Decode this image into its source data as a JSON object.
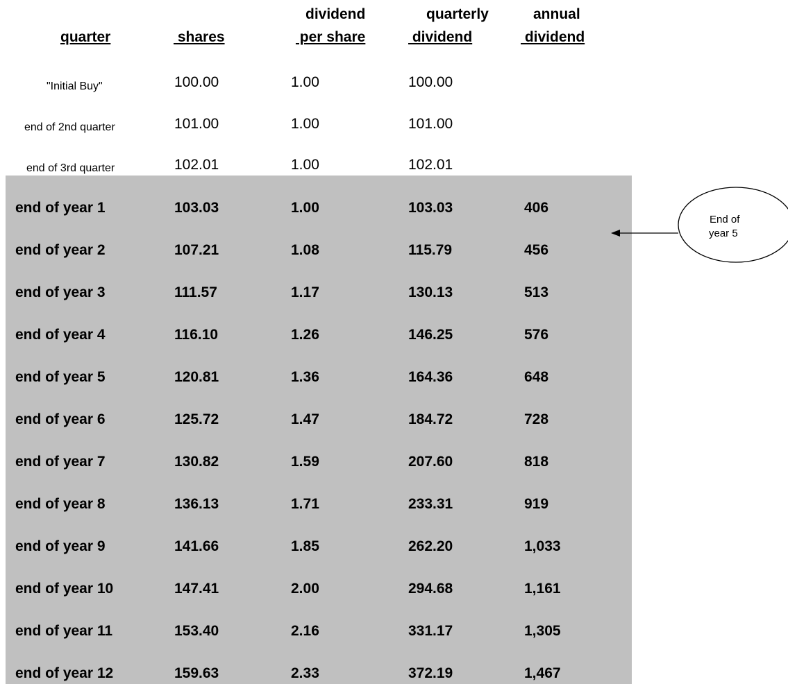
{
  "headers": {
    "quarter": "quarter",
    "shares": " shares",
    "dps_top": "dividend",
    "dps_bottom": " per share",
    "qdiv_top": "quarterly",
    "qdiv_bottom": " dividend",
    "adiv_top": "annual",
    "adiv_bottom": " dividend"
  },
  "quarter_rows": [
    {
      "label": "\"Initial Buy\"",
      "shares": "100.00",
      "dps": "1.00",
      "qdiv": "100.00"
    },
    {
      "label": "end of 2nd quarter",
      "shares": "101.00",
      "dps": "1.00",
      "qdiv": "101.00"
    },
    {
      "label": "end of 3rd quarter",
      "shares": "102.01",
      "dps": "1.00",
      "qdiv": "102.01"
    }
  ],
  "year_rows": [
    {
      "label": "end of year 1",
      "shares": "103.03",
      "dps": "1.00",
      "qdiv": "103.03",
      "adiv": "406"
    },
    {
      "label": "end of year 2",
      "shares": "107.21",
      "dps": "1.08",
      "qdiv": "115.79",
      "adiv": "456"
    },
    {
      "label": "end of year 3",
      "shares": "111.57",
      "dps": "1.17",
      "qdiv": "130.13",
      "adiv": "513"
    },
    {
      "label": "end of year 4",
      "shares": "116.10",
      "dps": "1.26",
      "qdiv": "146.25",
      "adiv": "576"
    },
    {
      "label": "end of year 5",
      "shares": "120.81",
      "dps": "1.36",
      "qdiv": "164.36",
      "adiv": "648"
    },
    {
      "label": "end of year 6",
      "shares": "125.72",
      "dps": "1.47",
      "qdiv": "184.72",
      "adiv": "728"
    },
    {
      "label": "end of year 7",
      "shares": "130.82",
      "dps": "1.59",
      "qdiv": "207.60",
      "adiv": "818"
    },
    {
      "label": "end of year 8",
      "shares": "136.13",
      "dps": "1.71",
      "qdiv": "233.31",
      "adiv": "919"
    },
    {
      "label": "end of year 9",
      "shares": "141.66",
      "dps": "1.85",
      "qdiv": "262.20",
      "adiv": "1,033"
    },
    {
      "label": "end of year 10",
      "shares": "147.41",
      "dps": "2.00",
      "qdiv": "294.68",
      "adiv": "1,161"
    },
    {
      "label": "end of year 11",
      "shares": "153.40",
      "dps": "2.16",
      "qdiv": "331.17",
      "adiv": "1,305"
    },
    {
      "label": "end of year 12",
      "shares": "159.63",
      "dps": "2.33",
      "qdiv": "372.19",
      "adiv": "1,467"
    }
  ],
  "callout": {
    "line1": "End of",
    "line2": "year 5"
  },
  "colors": {
    "shade": "#c0c0c0",
    "text": "#000000",
    "background": "#ffffff"
  }
}
